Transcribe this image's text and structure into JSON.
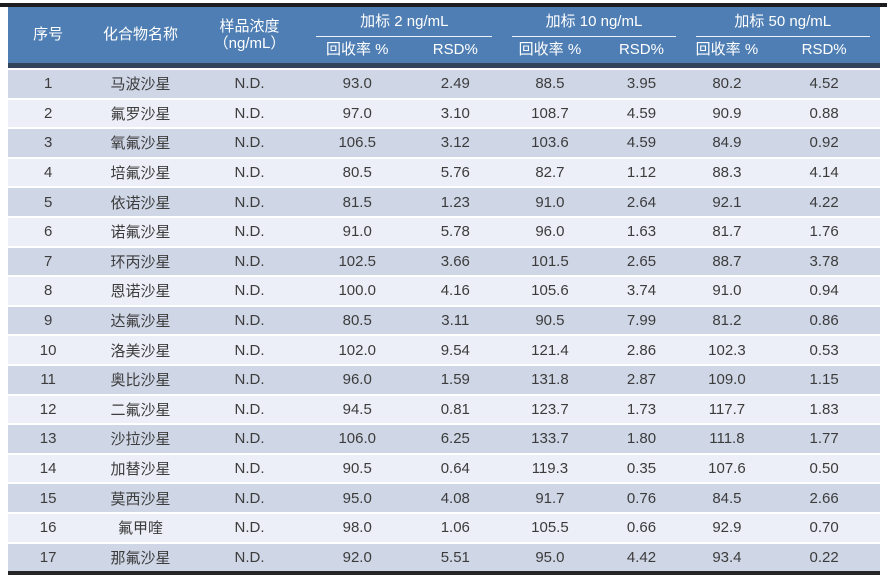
{
  "table": {
    "header": {
      "no_label": "序号",
      "compound_label": "化合物名称",
      "concentration_line1": "样品浓度",
      "concentration_line2": "（ng/mL）",
      "groups": [
        {
          "label": "加标 2 ng/mL"
        },
        {
          "label": "加标 10 ng/mL"
        },
        {
          "label": "加标 50 ng/mL"
        }
      ],
      "recovery_label": "回收率 %",
      "rsd_label": "RSD%"
    },
    "rows": [
      [
        "1",
        "马波沙星",
        "N.D.",
        "93.0",
        "2.49",
        "88.5",
        "3.95",
        "80.2",
        "4.52"
      ],
      [
        "2",
        "氟罗沙星",
        "N.D.",
        "97.0",
        "3.10",
        "108.7",
        "4.59",
        "90.9",
        "0.88"
      ],
      [
        "3",
        "氧氟沙星",
        "N.D.",
        "106.5",
        "3.12",
        "103.6",
        "4.59",
        "84.9",
        "0.92"
      ],
      [
        "4",
        "培氟沙星",
        "N.D.",
        "80.5",
        "5.76",
        "82.7",
        "1.12",
        "88.3",
        "4.14"
      ],
      [
        "5",
        "依诺沙星",
        "N.D.",
        "81.5",
        "1.23",
        "91.0",
        "2.64",
        "92.1",
        "4.22"
      ],
      [
        "6",
        "诺氟沙星",
        "N.D.",
        "91.0",
        "5.78",
        "96.0",
        "1.63",
        "81.7",
        "1.76"
      ],
      [
        "7",
        "环丙沙星",
        "N.D.",
        "102.5",
        "3.66",
        "101.5",
        "2.65",
        "88.7",
        "3.78"
      ],
      [
        "8",
        "恩诺沙星",
        "N.D.",
        "100.0",
        "4.16",
        "105.6",
        "3.74",
        "91.0",
        "0.94"
      ],
      [
        "9",
        "达氟沙星",
        "N.D.",
        "80.5",
        "3.11",
        "90.5",
        "7.99",
        "81.2",
        "0.86"
      ],
      [
        "10",
        "洛美沙星",
        "N.D.",
        "102.0",
        "9.54",
        "121.4",
        "2.86",
        "102.3",
        "0.53"
      ],
      [
        "11",
        "奥比沙星",
        "N.D.",
        "96.0",
        "1.59",
        "131.8",
        "2.87",
        "109.0",
        "1.15"
      ],
      [
        "12",
        "二氟沙星",
        "N.D.",
        "94.5",
        "0.81",
        "123.7",
        "1.73",
        "117.7",
        "1.83"
      ],
      [
        "13",
        "沙拉沙星",
        "N.D.",
        "106.0",
        "6.25",
        "133.7",
        "1.80",
        "111.8",
        "1.77"
      ],
      [
        "14",
        "加替沙星",
        "N.D.",
        "90.5",
        "0.64",
        "119.3",
        "0.35",
        "107.6",
        "0.50"
      ],
      [
        "15",
        "莫西沙星",
        "N.D.",
        "95.0",
        "4.08",
        "91.7",
        "0.76",
        "84.5",
        "2.66"
      ],
      [
        "16",
        "氟甲喹",
        "N.D.",
        "98.0",
        "1.06",
        "105.5",
        "0.66",
        "92.9",
        "0.70"
      ],
      [
        "17",
        "那氟沙星",
        "N.D.",
        "92.0",
        "5.51",
        "95.0",
        "4.42",
        "93.4",
        "0.22"
      ]
    ]
  },
  "colors": {
    "header_blue": "#4e7eb3",
    "header_text": "#ffffff",
    "divider_navy": "#31445c",
    "row_odd": "#cfd6e6",
    "row_even": "#eceff7",
    "body_text": "#3c3c3c",
    "top_rule": "#1d1d1f",
    "bottom_rule": "#262626"
  }
}
